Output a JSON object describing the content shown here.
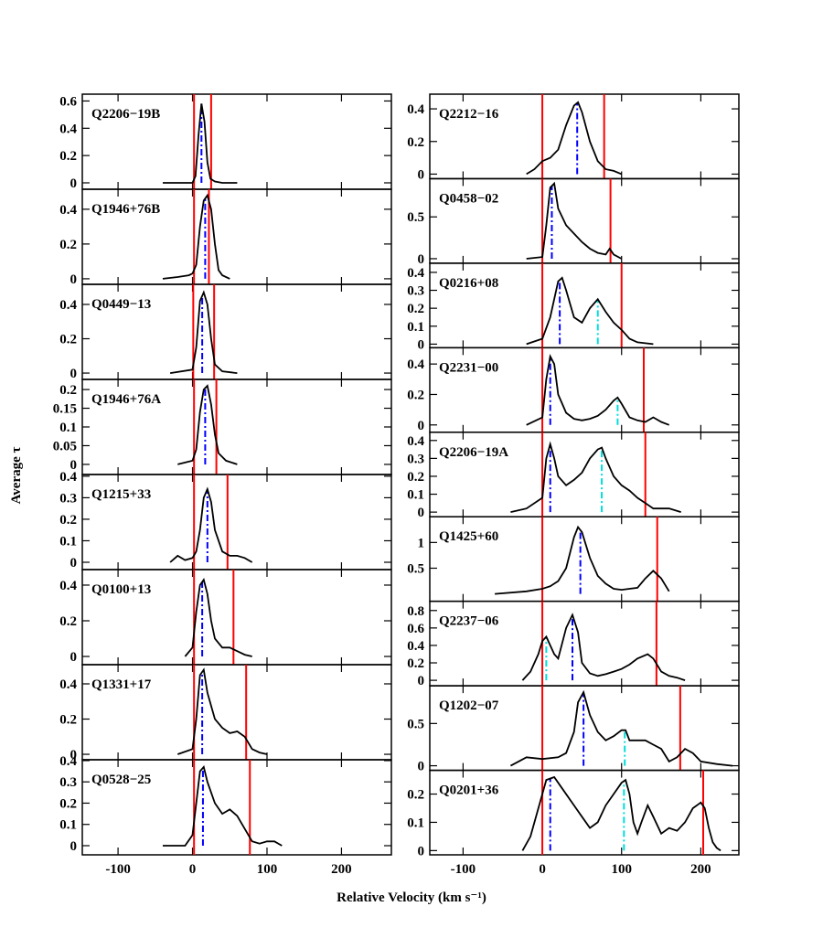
{
  "figure": {
    "xlabel": "Relative Velocity (km s⁻¹)",
    "ylabel": "Average τ"
  },
  "chart_data": [
    {
      "type": "line",
      "xlim": [
        -148,
        267
      ],
      "xticks": [
        -100,
        0,
        100,
        200
      ],
      "line_color": "#000000",
      "limit_color": "#ff0000",
      "center_color": "#0000ff",
      "second_color": "#00dddd",
      "panels": [
        {
          "title": "Q2206−19B",
          "ylim": [
            -0.047,
            0.65
          ],
          "yticks": [
            0,
            0.2,
            0.4,
            0.6
          ],
          "x": [
            -40,
            0,
            4,
            8,
            12,
            16,
            20,
            24,
            30,
            40,
            60
          ],
          "values": [
            0,
            0,
            0.05,
            0.35,
            0.58,
            0.45,
            0.15,
            0.03,
            0.01,
            0,
            0
          ],
          "red_lines": [
            2,
            25
          ],
          "blue_line": 12
        },
        {
          "title": "Q1946+76B",
          "ylim": [
            -0.032,
            0.515
          ],
          "yticks": [
            0,
            0.2,
            0.4
          ],
          "x": [
            -40,
            -20,
            -5,
            0,
            5,
            10,
            15,
            20,
            25,
            30,
            35,
            40,
            50
          ],
          "values": [
            0,
            0.01,
            0.02,
            0.03,
            0.08,
            0.3,
            0.45,
            0.48,
            0.4,
            0.2,
            0.05,
            0.02,
            0
          ],
          "red_lines": [
            2,
            22
          ],
          "blue_line": 17
        },
        {
          "title": "Q0449−13",
          "ylim": [
            -0.037,
            0.517
          ],
          "yticks": [
            0,
            0.2,
            0.4
          ],
          "x": [
            -30,
            0,
            5,
            10,
            15,
            20,
            25,
            30,
            40,
            60
          ],
          "values": [
            0,
            0.02,
            0.15,
            0.42,
            0.47,
            0.4,
            0.2,
            0.05,
            0.01,
            0
          ],
          "red_lines": [
            1,
            29
          ],
          "blue_line": 13
        },
        {
          "title": "Q1946+76A",
          "ylim": [
            -0.027,
            0.227
          ],
          "yticks": [
            0,
            0.05,
            0.1,
            0.15,
            0.2
          ],
          "x": [
            -20,
            0,
            5,
            10,
            15,
            20,
            25,
            30,
            35,
            45,
            60
          ],
          "values": [
            0,
            0.01,
            0.04,
            0.14,
            0.2,
            0.21,
            0.16,
            0.08,
            0.03,
            0.01,
            0
          ],
          "red_lines": [
            2,
            32
          ],
          "blue_line": 17
        },
        {
          "title": "Q1215+33",
          "ylim": [
            -0.034,
            0.408
          ],
          "yticks": [
            0,
            0.1,
            0.2,
            0.3,
            0.4
          ],
          "x": [
            -30,
            -20,
            -10,
            0,
            5,
            10,
            15,
            20,
            25,
            30,
            40,
            50,
            60,
            70,
            80
          ],
          "values": [
            0,
            0.03,
            0.01,
            0.02,
            0.05,
            0.15,
            0.3,
            0.34,
            0.28,
            0.15,
            0.05,
            0.03,
            0.03,
            0.02,
            0
          ],
          "red_lines": [
            2,
            47
          ],
          "blue_line": 20
        },
        {
          "title": "Q0100+13",
          "ylim": [
            -0.046,
            0.487
          ],
          "yticks": [
            0,
            0.2,
            0.4
          ],
          "x": [
            -10,
            0,
            5,
            10,
            15,
            20,
            25,
            30,
            40,
            50,
            60,
            70,
            80
          ],
          "values": [
            0,
            0.05,
            0.25,
            0.4,
            0.43,
            0.35,
            0.2,
            0.1,
            0.05,
            0.05,
            0.03,
            0.01,
            0
          ],
          "red_lines": [
            2,
            55
          ],
          "blue_line": 13
        },
        {
          "title": "Q1331+17",
          "ylim": [
            -0.031,
            0.509
          ],
          "yticks": [
            0,
            0.2,
            0.4
          ],
          "x": [
            -20,
            0,
            5,
            10,
            15,
            20,
            30,
            40,
            50,
            60,
            70,
            80,
            90,
            100
          ],
          "values": [
            0,
            0.03,
            0.2,
            0.45,
            0.48,
            0.35,
            0.2,
            0.15,
            0.12,
            0.13,
            0.1,
            0.03,
            0.01,
            0
          ],
          "red_lines": [
            2,
            72
          ],
          "blue_line": 13
        },
        {
          "title": "Q0528−25",
          "ylim": [
            -0.043,
            0.404
          ],
          "yticks": [
            0,
            0.1,
            0.2,
            0.3,
            0.4
          ],
          "x": [
            -40,
            -10,
            0,
            5,
            10,
            15,
            20,
            30,
            40,
            50,
            60,
            70,
            80,
            90,
            100,
            110,
            120
          ],
          "values": [
            0,
            0,
            0.05,
            0.2,
            0.35,
            0.37,
            0.3,
            0.2,
            0.15,
            0.17,
            0.14,
            0.08,
            0.02,
            0.01,
            0.02,
            0.02,
            0
          ],
          "red_lines": [
            2,
            77
          ],
          "blue_line": 14
        }
      ]
    },
    {
      "type": "line",
      "xlim": [
        -142,
        248
      ],
      "xticks": [
        -100,
        0,
        100,
        200
      ],
      "line_color": "#000000",
      "limit_color": "#ff0000",
      "center_color": "#0000ff",
      "second_color": "#00dddd",
      "panels": [
        {
          "title": "Q2212−16",
          "ylim": [
            -0.028,
            0.49
          ],
          "yticks": [
            0,
            0.2,
            0.4
          ],
          "x": [
            -20,
            -10,
            0,
            10,
            20,
            30,
            40,
            45,
            50,
            60,
            70,
            80,
            90,
            100
          ],
          "values": [
            0,
            0.03,
            0.08,
            0.1,
            0.15,
            0.3,
            0.42,
            0.44,
            0.38,
            0.2,
            0.08,
            0.03,
            0.02,
            0
          ],
          "red_lines": [
            0,
            78
          ],
          "blue_line": 44
        },
        {
          "title": "Q0458−02",
          "ylim": [
            -0.054,
            0.957
          ],
          "yticks": [
            0,
            0.5
          ],
          "x": [
            -20,
            0,
            5,
            10,
            15,
            20,
            30,
            40,
            50,
            60,
            70,
            80,
            85,
            90,
            100
          ],
          "values": [
            0,
            0.02,
            0.4,
            0.85,
            0.9,
            0.6,
            0.4,
            0.3,
            0.2,
            0.12,
            0.07,
            0.05,
            0.12,
            0.05,
            0
          ],
          "red_lines": [
            0,
            86
          ],
          "blue_line": 12
        },
        {
          "title": "Q0216+08",
          "ylim": [
            -0.02,
            0.451
          ],
          "yticks": [
            0,
            0.1,
            0.2,
            0.3,
            0.4
          ],
          "x": [
            -20,
            0,
            10,
            20,
            25,
            30,
            40,
            50,
            60,
            70,
            80,
            90,
            100,
            110,
            120,
            140
          ],
          "values": [
            0,
            0.03,
            0.15,
            0.35,
            0.37,
            0.3,
            0.15,
            0.12,
            0.2,
            0.25,
            0.18,
            0.12,
            0.08,
            0.03,
            0.01,
            0
          ],
          "red_lines": [
            0,
            100
          ],
          "blue_line": 22,
          "cyan_line": 70
        },
        {
          "title": "Q2231−00",
          "ylim": [
            -0.048,
            0.507
          ],
          "yticks": [
            0,
            0.2,
            0.4
          ],
          "x": [
            -20,
            0,
            5,
            10,
            15,
            20,
            30,
            40,
            50,
            60,
            70,
            80,
            90,
            95,
            100,
            110,
            120,
            130,
            140,
            150,
            160
          ],
          "values": [
            0,
            0.05,
            0.3,
            0.45,
            0.4,
            0.2,
            0.08,
            0.04,
            0.03,
            0.04,
            0.06,
            0.1,
            0.16,
            0.18,
            0.14,
            0.05,
            0.03,
            0.02,
            0.05,
            0.02,
            0
          ],
          "red_lines": [
            0,
            128
          ],
          "blue_line": 10,
          "cyan_line": 95
        },
        {
          "title": "Q2206−19A",
          "ylim": [
            -0.026,
            0.446
          ],
          "yticks": [
            0,
            0.1,
            0.2,
            0.3,
            0.4
          ],
          "x": [
            -40,
            -20,
            0,
            5,
            10,
            15,
            20,
            30,
            40,
            50,
            60,
            70,
            75,
            80,
            90,
            100,
            110,
            120,
            130,
            140,
            160,
            175
          ],
          "values": [
            0,
            0.02,
            0.08,
            0.3,
            0.38,
            0.3,
            0.2,
            0.15,
            0.18,
            0.22,
            0.3,
            0.35,
            0.36,
            0.3,
            0.2,
            0.15,
            0.12,
            0.08,
            0.05,
            0.02,
            0.02,
            0
          ],
          "red_lines": [
            0,
            130
          ],
          "blue_line": 10,
          "cyan_line": 75
        },
        {
          "title": "Q1425+60",
          "ylim": [
            -0.143,
            1.5
          ],
          "yticks": [
            0.5,
            1
          ],
          "x": [
            -60,
            -20,
            0,
            10,
            20,
            30,
            40,
            45,
            50,
            60,
            70,
            80,
            90,
            100,
            110,
            120,
            130,
            140,
            150,
            160
          ],
          "values": [
            0,
            0.05,
            0.1,
            0.15,
            0.25,
            0.5,
            1.1,
            1.3,
            1.2,
            0.7,
            0.35,
            0.2,
            0.1,
            0.08,
            0.1,
            0.12,
            0.3,
            0.45,
            0.3,
            0.05
          ],
          "red_lines": [
            0,
            145
          ],
          "blue_line": 48
        },
        {
          "title": "Q2237−06",
          "ylim": [
            -0.063,
            0.906
          ],
          "yticks": [
            0,
            0.2,
            0.4,
            0.6,
            0.8
          ],
          "x": [
            -25,
            -15,
            -5,
            0,
            5,
            10,
            15,
            20,
            30,
            38,
            45,
            50,
            60,
            70,
            80,
            90,
            100,
            110,
            120,
            133,
            140,
            150,
            160,
            170,
            180
          ],
          "values": [
            0,
            0.1,
            0.3,
            0.45,
            0.5,
            0.4,
            0.3,
            0.25,
            0.6,
            0.75,
            0.55,
            0.2,
            0.08,
            0.05,
            0.07,
            0.1,
            0.13,
            0.18,
            0.25,
            0.3,
            0.25,
            0.1,
            0.05,
            0.03,
            0
          ],
          "red_lines": [
            0,
            144
          ],
          "blue_line": 38,
          "cyan_line": 5
        },
        {
          "title": "Q1202−07",
          "ylim": [
            -0.054,
            0.946
          ],
          "yticks": [
            0,
            0.5
          ],
          "x": [
            -40,
            -30,
            -20,
            0,
            20,
            30,
            40,
            45,
            52,
            60,
            70,
            80,
            90,
            100,
            105,
            110,
            120,
            130,
            140,
            150,
            160,
            170,
            180,
            190,
            200,
            220,
            240
          ],
          "values": [
            0,
            0.05,
            0.1,
            0.08,
            0.1,
            0.15,
            0.4,
            0.75,
            0.87,
            0.6,
            0.4,
            0.3,
            0.35,
            0.42,
            0.42,
            0.3,
            0.3,
            0.3,
            0.25,
            0.2,
            0.05,
            0.1,
            0.2,
            0.15,
            0.05,
            0.02,
            0
          ],
          "red_lines": [
            0,
            174
          ],
          "blue_line": 52,
          "cyan_line": 104
        },
        {
          "title": "Q0201+36",
          "ylim": [
            -0.015,
            0.284
          ],
          "yticks": [
            0,
            0.1,
            0.2
          ],
          "x": [
            -25,
            -15,
            0,
            5,
            15,
            25,
            40,
            50,
            60,
            70,
            80,
            90,
            100,
            105,
            110,
            115,
            120,
            125,
            133,
            140,
            150,
            160,
            170,
            180,
            190,
            200,
            205,
            210,
            215,
            220,
            225
          ],
          "values": [
            0,
            0.05,
            0.2,
            0.25,
            0.26,
            0.22,
            0.16,
            0.12,
            0.08,
            0.1,
            0.16,
            0.2,
            0.24,
            0.25,
            0.2,
            0.1,
            0.06,
            0.1,
            0.16,
            0.12,
            0.06,
            0.08,
            0.07,
            0.1,
            0.15,
            0.17,
            0.15,
            0.08,
            0.03,
            0.01,
            0
          ],
          "red_lines": [
            0,
            203
          ],
          "blue_line": 10,
          "cyan_line": 103
        }
      ]
    }
  ]
}
